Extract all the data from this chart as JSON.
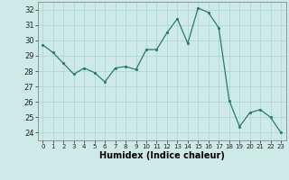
{
  "x": [
    0,
    1,
    2,
    3,
    4,
    5,
    6,
    7,
    8,
    9,
    10,
    11,
    12,
    13,
    14,
    15,
    16,
    17,
    18,
    19,
    20,
    21,
    22,
    23
  ],
  "y": [
    29.7,
    29.2,
    28.5,
    27.8,
    28.2,
    27.9,
    27.3,
    28.2,
    28.3,
    28.1,
    29.4,
    29.4,
    30.5,
    31.4,
    29.8,
    32.1,
    31.8,
    30.8,
    26.1,
    24.4,
    25.3,
    25.5,
    25.0,
    24.0
  ],
  "xlabel": "Humidex (Indice chaleur)",
  "ylim": [
    23.5,
    32.5
  ],
  "xlim": [
    -0.5,
    23.5
  ],
  "yticks": [
    24,
    25,
    26,
    27,
    28,
    29,
    30,
    31,
    32
  ],
  "xticks": [
    0,
    1,
    2,
    3,
    4,
    5,
    6,
    7,
    8,
    9,
    10,
    11,
    12,
    13,
    14,
    15,
    16,
    17,
    18,
    19,
    20,
    21,
    22,
    23
  ],
  "xtick_labels": [
    "0",
    "1",
    "2",
    "3",
    "4",
    "5",
    "6",
    "7",
    "8",
    "9",
    "10",
    "11",
    "12",
    "13",
    "14",
    "15",
    "16",
    "17",
    "18",
    "19",
    "20",
    "21",
    "22",
    "23"
  ],
  "line_color": "#2a7a6a",
  "marker_color": "#2a7a6a",
  "bg_color": "#ceeae6",
  "grid_color": "#aad4ce",
  "xlabel_fontsize": 7,
  "ytick_fontsize": 6,
  "xtick_fontsize": 5
}
